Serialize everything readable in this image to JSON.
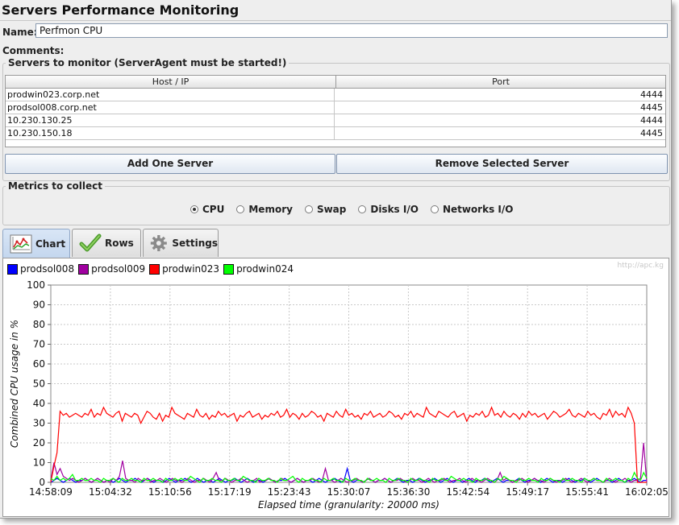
{
  "title": "Servers Performance Monitoring",
  "name_field": {
    "label": "Name:",
    "value": "Perfmon CPU"
  },
  "comments_label": "Comments:",
  "servers": {
    "legend": "Servers to monitor (ServerAgent must be started!)",
    "columns": [
      "Host / IP",
      "Port"
    ],
    "rows": [
      {
        "host": "prodwin023.corp.net",
        "port": "4444"
      },
      {
        "host": "prodsol008.corp.net",
        "port": "4445"
      },
      {
        "host": "10.230.130.25",
        "port": "4444"
      },
      {
        "host": "10.230.150.18",
        "port": "4445"
      }
    ],
    "add_label": "Add One Server",
    "remove_label": "Remove Selected Server"
  },
  "metrics": {
    "legend": "Metrics to collect",
    "options": [
      "CPU",
      "Memory",
      "Swap",
      "Disks I/O",
      "Networks I/O"
    ],
    "selected": "CPU"
  },
  "tabs": [
    {
      "label": "Chart",
      "icon": "chart-icon",
      "active": true
    },
    {
      "label": "Rows",
      "icon": "checkmark-icon",
      "active": false
    },
    {
      "label": "Settings",
      "icon": "gear-icon",
      "active": false
    }
  ],
  "watermark": "http://apc.kg",
  "colors": {
    "prodsol008": "#0000ff",
    "prodsol009": "#a000a0",
    "prodwin023": "#ff0000",
    "prodwin024": "#00ff00"
  },
  "chart_data": {
    "type": "line",
    "xlabel": "Elapsed time (granularity: 20000 ms)",
    "ylabel": "Combined CPU usage in %",
    "ylim": [
      0,
      100
    ],
    "yticks": [
      0,
      10,
      20,
      30,
      40,
      50,
      60,
      70,
      80,
      90,
      100
    ],
    "xticks": [
      "14:58:09",
      "15:04:32",
      "15:10:56",
      "15:17:19",
      "15:23:43",
      "15:30:07",
      "15:36:30",
      "15:42:54",
      "15:49:17",
      "15:55:41",
      "16:02:05"
    ],
    "x_unit": "sample index (20 s granularity)",
    "x_range": [
      0,
      192
    ],
    "grid": true,
    "legend_position": "top-left",
    "series": [
      {
        "name": "prodsol008",
        "color": "#0000ff",
        "values": [
          0,
          1,
          2,
          1,
          0,
          1,
          2,
          1,
          0,
          1,
          1,
          2,
          1,
          0,
          1,
          2,
          1,
          0,
          1,
          1,
          0,
          1,
          2,
          1,
          0,
          1,
          1,
          2,
          1,
          0,
          1,
          2,
          1,
          0,
          1,
          1,
          0,
          1,
          2,
          1,
          0,
          1,
          1,
          2,
          1,
          0,
          1,
          2,
          1,
          0,
          1,
          1,
          0,
          1,
          2,
          1,
          0,
          1,
          1,
          2,
          1,
          0,
          1,
          2,
          1,
          0,
          1,
          1,
          0,
          1,
          2,
          1,
          0,
          1,
          1,
          2,
          1,
          0,
          1,
          2,
          1,
          0,
          1,
          1,
          0,
          1,
          2,
          1,
          0,
          1,
          1,
          2,
          1,
          0,
          1,
          7,
          1,
          0,
          1,
          1,
          0,
          1,
          2,
          1,
          0,
          1,
          1,
          2,
          1,
          0,
          1,
          2,
          1,
          0,
          1,
          1,
          0,
          1,
          2,
          1,
          0,
          1,
          1,
          2,
          1,
          0,
          1,
          2,
          1,
          0,
          1,
          1,
          0,
          1,
          2,
          1,
          0,
          1,
          1,
          2,
          1,
          0,
          1,
          2,
          1,
          0,
          1,
          1,
          0,
          1,
          2,
          1,
          0,
          1,
          1,
          2,
          1,
          0,
          1,
          2,
          1,
          0,
          1,
          1,
          0,
          1,
          2,
          1,
          0,
          1,
          1,
          2,
          1,
          0,
          1,
          2,
          1,
          0,
          1,
          1,
          0,
          1,
          2,
          1,
          0,
          1,
          1,
          2,
          1,
          0,
          1,
          1
        ]
      },
      {
        "name": "prodsol009",
        "color": "#a000a0",
        "values": [
          1,
          10,
          4,
          7,
          3,
          2,
          1,
          2,
          1,
          0,
          1,
          2,
          1,
          0,
          1,
          2,
          1,
          0,
          1,
          0,
          2,
          1,
          3,
          11,
          2,
          1,
          1,
          0,
          2,
          1,
          1,
          2,
          0,
          1,
          1,
          2,
          1,
          0,
          1,
          2,
          1,
          1,
          0,
          1,
          2,
          1,
          0,
          1,
          1,
          2,
          1,
          0,
          2,
          5,
          1,
          1,
          2,
          1,
          0,
          1,
          1,
          2,
          1,
          0,
          1,
          1,
          2,
          0,
          1,
          1,
          2,
          1,
          0,
          1,
          2,
          1,
          1,
          0,
          1,
          2,
          1,
          0,
          1,
          1,
          2,
          1,
          0,
          1,
          7,
          1,
          1,
          0,
          1,
          2,
          1,
          0,
          1,
          1,
          2,
          1,
          0,
          1,
          2,
          1,
          0,
          1,
          1,
          2,
          1,
          0,
          1,
          1,
          2,
          1,
          0,
          1,
          2,
          1,
          1,
          0,
          1,
          2,
          1,
          0,
          1,
          1,
          2,
          1,
          0,
          1,
          1,
          2,
          1,
          0,
          1,
          2,
          1,
          1,
          0,
          1,
          2,
          1,
          0,
          1,
          5,
          1,
          2,
          1,
          0,
          1,
          1,
          2,
          1,
          0,
          1,
          2,
          1,
          1,
          0,
          1,
          2,
          1,
          0,
          1,
          1,
          2,
          1,
          0,
          1,
          1,
          2,
          1,
          0,
          1,
          2,
          1,
          1,
          0,
          1,
          2,
          1,
          0,
          1,
          1,
          2,
          1,
          0,
          1,
          1,
          2,
          20,
          0
        ]
      },
      {
        "name": "prodwin023",
        "color": "#ff0000",
        "values": [
          0,
          8,
          15,
          36,
          34,
          35,
          33,
          34,
          35,
          34,
          33,
          35,
          34,
          37,
          33,
          35,
          34,
          38,
          35,
          34,
          33,
          35,
          36,
          31,
          35,
          34,
          33,
          35,
          34,
          30,
          33,
          36,
          35,
          33,
          32,
          35,
          31,
          34,
          33,
          38,
          35,
          34,
          33,
          32,
          35,
          34,
          33,
          37,
          34,
          33,
          35,
          32,
          34,
          33,
          36,
          34,
          35,
          33,
          34,
          35,
          31,
          34,
          33,
          35,
          36,
          33,
          34,
          35,
          32,
          34,
          33,
          35,
          34,
          36,
          33,
          34,
          37,
          33,
          35,
          34,
          32,
          35,
          33,
          34,
          36,
          35,
          33,
          34,
          31,
          35,
          34,
          33,
          36,
          34,
          33,
          37,
          34,
          35,
          33,
          34,
          32,
          35,
          34,
          36,
          33,
          34,
          35,
          33,
          34,
          36,
          35,
          33,
          34,
          32,
          35,
          34,
          36,
          33,
          35,
          34,
          33,
          38,
          35,
          34,
          33,
          36,
          35,
          34,
          33,
          35,
          36,
          33,
          34,
          35,
          31,
          34,
          33,
          35,
          34,
          36,
          33,
          34,
          38,
          34,
          35,
          33,
          36,
          34,
          33,
          35,
          34,
          32,
          35,
          33,
          36,
          34,
          35,
          33,
          34,
          35,
          32,
          34,
          36,
          35,
          33,
          34,
          35,
          37,
          34,
          33,
          35,
          34,
          33,
          36,
          34,
          35,
          33,
          32,
          35,
          34,
          37,
          33,
          36,
          34,
          35,
          33,
          38,
          35,
          30,
          0,
          0,
          0,
          0
        ]
      },
      {
        "name": "prodwin024",
        "color": "#00ff00",
        "values": [
          2,
          1,
          3,
          1,
          2,
          1,
          2,
          4,
          1,
          1,
          2,
          1,
          1,
          2,
          1,
          1,
          0,
          2,
          1,
          1,
          2,
          1,
          0,
          2,
          1,
          1,
          2,
          1,
          1,
          0,
          2,
          1,
          1,
          2,
          1,
          1,
          0,
          2,
          1,
          1,
          2,
          1,
          2,
          1,
          1,
          3,
          2,
          1,
          0,
          2,
          1,
          1,
          2,
          1,
          1,
          0,
          2,
          1,
          1,
          2,
          1,
          1,
          3,
          2,
          1,
          1,
          0,
          2,
          1,
          1,
          2,
          1,
          1,
          0,
          2,
          1,
          1,
          2,
          3,
          1,
          0,
          2,
          1,
          1,
          2,
          1,
          1,
          0,
          2,
          1,
          1,
          2,
          1,
          1,
          0,
          2,
          1,
          1,
          2,
          1,
          1,
          0,
          2,
          1,
          1,
          2,
          1,
          1,
          0,
          2,
          1,
          1,
          2,
          1,
          1,
          0,
          2,
          1,
          1,
          2,
          1,
          1,
          0,
          2,
          1,
          1,
          2,
          1,
          1,
          3,
          2,
          1,
          1,
          2,
          1,
          1,
          0,
          2,
          1,
          1,
          2,
          1,
          1,
          0,
          2,
          1,
          3,
          2,
          1,
          1,
          0,
          2,
          1,
          1,
          2,
          1,
          1,
          0,
          2,
          1,
          1,
          2,
          1,
          1,
          0,
          2,
          1,
          1,
          2,
          1,
          1,
          0,
          2,
          1,
          1,
          2,
          1,
          1,
          0,
          2,
          1,
          1,
          2,
          1,
          1,
          0,
          2,
          1,
          5,
          2,
          1,
          5,
          2
        ]
      }
    ]
  }
}
